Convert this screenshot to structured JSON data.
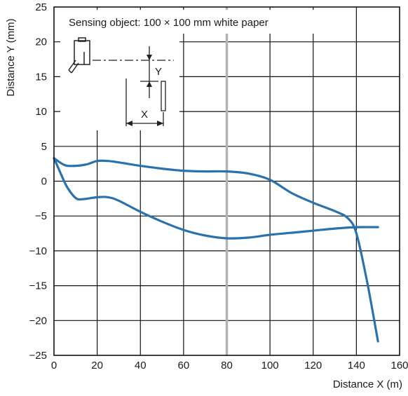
{
  "chart_data": {
    "type": "line",
    "title": "",
    "annotation": "Sensing object: 100 × 100 mm white paper",
    "xlabel": "Distance X (m)",
    "ylabel": "Distance Y (mm)",
    "xlim": [
      0,
      160
    ],
    "ylim": [
      -25,
      25
    ],
    "xticks": [
      0,
      20,
      40,
      60,
      80,
      100,
      120,
      140,
      160
    ],
    "yticks": [
      25,
      20,
      15,
      10,
      5,
      0,
      -5,
      -10,
      -15,
      -20,
      -25
    ],
    "ytick_labels": [
      "25",
      "20",
      "15",
      "10",
      "5",
      "0",
      "−5",
      "−10",
      "−15",
      "−20",
      "−25"
    ],
    "highlight_x": 80,
    "grid": true,
    "series": [
      {
        "x": [
          0,
          5,
          10,
          15,
          20,
          25,
          30,
          40,
          50,
          60,
          70,
          80,
          90,
          100,
          110,
          120,
          130,
          136,
          140,
          145,
          150
        ],
        "y": [
          3.3,
          2.3,
          2.2,
          2.4,
          2.9,
          2.9,
          2.7,
          2.2,
          1.8,
          1.5,
          1.4,
          1.4,
          1.1,
          0.2,
          -1.7,
          -3.1,
          -4.3,
          -5.3,
          -7.5,
          -14.5,
          -23.0
        ]
      },
      {
        "x": [
          0,
          3,
          6,
          10,
          13,
          20,
          25,
          30,
          40,
          50,
          60,
          70,
          80,
          90,
          100,
          110,
          120,
          130,
          140,
          150
        ],
        "y": [
          3.3,
          1.2,
          -0.8,
          -2.4,
          -2.6,
          -2.3,
          -2.3,
          -2.8,
          -4.4,
          -5.8,
          -7.0,
          -7.8,
          -8.2,
          -8.1,
          -7.7,
          -7.4,
          -7.1,
          -6.8,
          -6.6,
          -6.6
        ]
      }
    ],
    "colors": {
      "series": "#2a72ad",
      "grid": "#111111",
      "highlight": "#b3b3b3"
    },
    "inset": {
      "y_label": "Y",
      "x_label": "X"
    }
  }
}
